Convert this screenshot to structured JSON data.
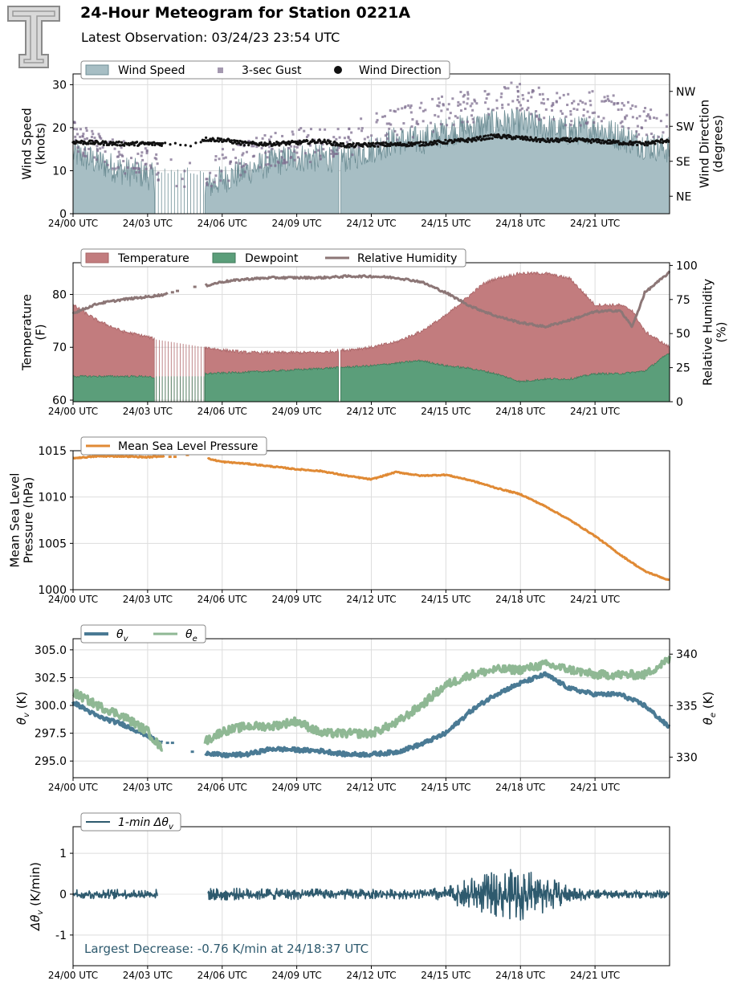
{
  "header": {
    "title": "24-Hour Meteogram for Station 0221A",
    "subtitle": "Latest Observation: 03/24/23 23:54 UTC",
    "logo_text": "T"
  },
  "colors": {
    "wind_speed": "#a7bec4",
    "wind_speed_edge": "#6f8f96",
    "gust": "#7e6e8f",
    "wind_dir": "#111111",
    "temperature": "#c27c7e",
    "dewpoint": "#5b9e7a",
    "rh": "#8c7676",
    "mslp": "#e08a35",
    "theta_v": "#4a7a94",
    "theta_e": "#8fb894",
    "dtheta": "#2e5a6e",
    "annotation": "#2e5a6e",
    "grid": "#dddddd"
  },
  "chart_data": [
    {
      "id": "wind",
      "type": "area",
      "legend": [
        "Wind Speed",
        "3-sec Gust",
        "Wind Direction"
      ],
      "ylabel": "Wind Speed\n(knots)",
      "ylabel2": "Wind Direction\n(degrees)",
      "ylim": [
        0,
        32.5
      ],
      "yticks": [
        0,
        10,
        20,
        30
      ],
      "y2lim": [
        0,
        360
      ],
      "y2ticks": [
        {
          "value": 45,
          "label": "NE"
        },
        {
          "value": 135,
          "label": "SE"
        },
        {
          "value": 225,
          "label": "SW"
        },
        {
          "value": 315,
          "label": "NW"
        }
      ],
      "xlim": [
        0,
        24
      ],
      "xticks": [
        0,
        3,
        6,
        9,
        12,
        15,
        18,
        21
      ],
      "xticklabels": [
        "24/00 UTC",
        "24/03 UTC",
        "24/06 UTC",
        "24/09 UTC",
        "24/12 UTC",
        "24/15 UTC",
        "24/18 UTC",
        "24/21 UTC"
      ],
      "gaps": [
        [
          3.3,
          5.3
        ],
        [
          10.7,
          10.75
        ]
      ],
      "series": [
        {
          "name": "Wind Speed",
          "x": [
            0,
            1,
            2,
            3,
            3.3,
            5.3,
            6,
            7,
            8,
            9,
            10,
            11,
            12,
            13,
            14,
            15,
            16,
            17,
            18,
            19,
            20,
            21,
            22,
            23,
            24
          ],
          "values": [
            14,
            12,
            10,
            9,
            8,
            6,
            8,
            10,
            12,
            13,
            13,
            13,
            15,
            17,
            17,
            19,
            20,
            21,
            21,
            20,
            19,
            20,
            18,
            16,
            15
          ]
        },
        {
          "name": "3-sec Gust",
          "x": [
            0,
            1,
            2,
            3,
            3.3,
            5.3,
            6,
            7,
            8,
            9,
            10,
            11,
            12,
            13,
            14,
            15,
            16,
            17,
            18,
            19,
            20,
            21,
            22,
            23,
            24
          ],
          "values": [
            18,
            15,
            13,
            12,
            11,
            9,
            11,
            13,
            15,
            16,
            16,
            17,
            19,
            21,
            22,
            24,
            25,
            26,
            27,
            25,
            24,
            25,
            23,
            21,
            19
          ]
        },
        {
          "name": "Wind Direction",
          "x": [
            0,
            2,
            3.5,
            4.8,
            5.3,
            6,
            7,
            8,
            9,
            10,
            11,
            12,
            13,
            14,
            15,
            16,
            17,
            18,
            19,
            20,
            21,
            22,
            23,
            24
          ],
          "values": [
            185,
            180,
            180,
            178,
            192,
            190,
            180,
            180,
            183,
            187,
            175,
            178,
            178,
            180,
            185,
            190,
            200,
            195,
            188,
            190,
            187,
            183,
            180,
            190
          ]
        }
      ]
    },
    {
      "id": "temp",
      "type": "area",
      "legend": [
        "Temperature",
        "Dewpoint",
        "Relative Humidity"
      ],
      "ylabel": "Temperature\n(F)",
      "ylabel2": "Relative Humidity\n(%)",
      "ylim": [
        59.7,
        86
      ],
      "yticks": [
        60,
        70,
        80
      ],
      "y2lim": [
        0,
        102
      ],
      "y2ticks": [
        {
          "value": 0,
          "label": "0"
        },
        {
          "value": 25,
          "label": "25"
        },
        {
          "value": 50,
          "label": "50"
        },
        {
          "value": 75,
          "label": "75"
        },
        {
          "value": 100,
          "label": "100"
        }
      ],
      "xlim": [
        0,
        24
      ],
      "xticks": [
        0,
        3,
        6,
        9,
        12,
        15,
        18,
        21
      ],
      "xticklabels": [
        "24/00 UTC",
        "24/03 UTC",
        "24/06 UTC",
        "24/09 UTC",
        "24/12 UTC",
        "24/15 UTC",
        "24/18 UTC",
        "24/21 UTC"
      ],
      "series": [
        {
          "name": "Temperature",
          "x": [
            0,
            1,
            2,
            3,
            3.3,
            5.3,
            6,
            7,
            8,
            9,
            10,
            11,
            12,
            13,
            14,
            15,
            16,
            16.5,
            17,
            18,
            19,
            20,
            21,
            22,
            22.5,
            23,
            24
          ],
          "values": [
            78,
            75,
            73,
            72,
            71.5,
            70,
            69.5,
            69,
            69,
            69,
            69,
            69.5,
            70,
            71,
            73,
            76,
            80,
            82,
            83,
            84,
            84,
            83,
            78,
            78,
            77,
            73,
            70
          ]
        },
        {
          "name": "Dewpoint",
          "x": [
            0,
            3,
            3.3,
            5.3,
            8,
            10,
            12,
            14,
            15,
            16,
            17,
            18,
            19,
            20,
            21,
            22,
            23,
            24
          ],
          "values": [
            64.5,
            64.5,
            64,
            65,
            65.5,
            66,
            66.5,
            67.5,
            66.5,
            66,
            65,
            63.5,
            64,
            64,
            65,
            65,
            65.5,
            69
          ]
        },
        {
          "name": "Relative Humidity",
          "x": [
            0,
            1,
            2,
            3,
            3.8,
            4.6,
            5.3,
            6,
            7,
            8,
            9,
            10,
            11,
            12,
            13,
            14,
            15,
            16,
            17,
            18,
            19,
            20,
            21,
            22,
            22.5,
            23,
            24
          ],
          "values": [
            65,
            72,
            75,
            77,
            79,
            85,
            85,
            88,
            90,
            91,
            91,
            91,
            92,
            92,
            91,
            88,
            80,
            70,
            63,
            58,
            55,
            60,
            66,
            67,
            55,
            80,
            95
          ]
        }
      ]
    },
    {
      "id": "pressure",
      "type": "line",
      "legend": [
        "Mean Sea Level Pressure"
      ],
      "ylabel": "Mean Sea Level\nPressure (hPa)",
      "ylim": [
        1000,
        1015
      ],
      "yticks": [
        1000,
        1005,
        1010,
        1015
      ],
      "xlim": [
        0,
        24
      ],
      "xticks": [
        0,
        3,
        6,
        9,
        12,
        15,
        18,
        21
      ],
      "xticklabels": [
        "24/00 UTC",
        "24/03 UTC",
        "24/06 UTC",
        "24/09 UTC",
        "24/12 UTC",
        "24/15 UTC",
        "24/18 UTC",
        "24/21 UTC"
      ],
      "series": [
        {
          "name": "Mean Sea Level Pressure",
          "x": [
            0,
            1,
            2,
            3,
            4,
            5,
            6,
            7,
            8,
            9,
            10,
            11,
            12,
            13,
            14,
            15,
            16,
            17,
            18,
            19,
            20,
            21,
            22,
            23,
            24
          ],
          "values": [
            1014.2,
            1014.4,
            1014.4,
            1014.3,
            1014.5,
            1014.4,
            1013.8,
            1013.6,
            1013.3,
            1013.0,
            1012.8,
            1012.3,
            1011.9,
            1012.7,
            1012.3,
            1012.4,
            1011.8,
            1011.0,
            1010.3,
            1009.0,
            1007.5,
            1005.8,
            1003.8,
            1002.0,
            1001.0
          ]
        }
      ]
    },
    {
      "id": "theta",
      "type": "line",
      "legend": [
        "θv",
        "θe"
      ],
      "ylabel": "θv (K)",
      "ylabel2": "θe (K)",
      "ylim": [
        293.5,
        306
      ],
      "yticks": [
        295.0,
        297.5,
        300.0,
        302.5,
        305.0
      ],
      "y2lim": [
        328,
        341.5
      ],
      "y2ticks": [
        {
          "value": 330,
          "label": "330"
        },
        {
          "value": 335,
          "label": "335"
        },
        {
          "value": 340,
          "label": "340"
        }
      ],
      "xlim": [
        0,
        24
      ],
      "xticks": [
        0,
        3,
        6,
        9,
        12,
        15,
        18,
        21
      ],
      "xticklabels": [
        "24/00 UTC",
        "24/03 UTC",
        "24/06 UTC",
        "24/09 UTC",
        "24/12 UTC",
        "24/15 UTC",
        "24/18 UTC",
        "24/21 UTC"
      ],
      "series": [
        {
          "name": "θv",
          "x": [
            0,
            1,
            2,
            3,
            3.5,
            5.3,
            6,
            7,
            8,
            9,
            10,
            11,
            12,
            13,
            14,
            15,
            16,
            17,
            18,
            19,
            20,
            21,
            22,
            23,
            24
          ],
          "values": [
            300.3,
            299.0,
            298.3,
            297.3,
            296.6,
            295.8,
            295.5,
            295.6,
            296.1,
            296.0,
            295.9,
            295.6,
            295.6,
            295.8,
            296.5,
            297.5,
            299.5,
            301.0,
            302.0,
            302.8,
            301.5,
            301.0,
            301.0,
            300.0,
            298.0
          ]
        },
        {
          "name": "θe",
          "x": [
            0,
            1,
            2,
            3,
            3.5,
            5.3,
            6,
            7,
            8,
            9,
            10,
            11,
            12,
            13,
            14,
            15,
            16,
            17,
            18,
            19,
            20,
            21,
            22,
            23,
            24
          ],
          "values": [
            336.3,
            335.0,
            334.0,
            332.5,
            331.0,
            331.5,
            332.5,
            333.0,
            333.0,
            333.5,
            332.3,
            332.3,
            332.3,
            333.3,
            335.0,
            337.0,
            338.0,
            338.5,
            338.5,
            339.0,
            338.5,
            338.0,
            338.0,
            338.0,
            339.5
          ]
        }
      ]
    },
    {
      "id": "dtheta",
      "type": "line",
      "legend": [
        "1-min Δθv"
      ],
      "ylabel": "Δθv (K/min)",
      "ylim": [
        -1.75,
        1.65
      ],
      "yticks": [
        -1,
        0,
        1
      ],
      "xlim": [
        0,
        24
      ],
      "xticks": [
        0,
        3,
        6,
        9,
        12,
        15,
        18,
        21
      ],
      "xticklabels": [
        "24/00 UTC",
        "24/03 UTC",
        "24/06 UTC",
        "24/09 UTC",
        "24/12 UTC",
        "24/15 UTC",
        "24/18 UTC",
        "24/21 UTC"
      ],
      "gaps": [
        [
          3.4,
          5.4
        ]
      ],
      "amplitude": {
        "x": [
          0,
          3,
          6,
          12,
          14,
          15,
          16,
          17,
          18,
          19,
          20,
          21,
          22,
          24
        ],
        "values": [
          0.12,
          0.12,
          0.15,
          0.12,
          0.12,
          0.2,
          0.4,
          0.55,
          0.65,
          0.45,
          0.2,
          0.1,
          0.1,
          0.1
        ]
      },
      "annotation": "Largest Decrease: -0.76 K/min at 24/18:37 UTC"
    }
  ]
}
